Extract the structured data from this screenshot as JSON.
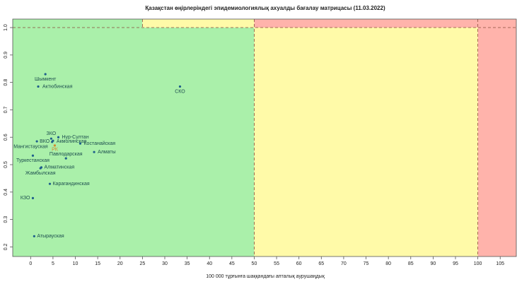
{
  "chart_data": {
    "type": "scatter",
    "title": "Қазақстан өңірлеріндегі эпидемиологиялық ахуалды бағалау матрицасы  (11.03.2022)",
    "x_label": "100 000 тұрғынға шаққандағы апталық аурушаңдық",
    "labels": [
      "Шымкент",
      "Актюбинская",
      "СКО",
      "Нур-Султан",
      "ЗКО",
      "Акмолинская",
      "ВКО",
      "Мангистауская",
      "Костанайская",
      "РК",
      "Алматы",
      "Павлодарская",
      "Туркестанская",
      "Алматинская",
      "Жамбылская",
      "Карагандинская",
      "КЗО",
      "Атырауская"
    ],
    "x": [
      3.3,
      1.7,
      33.4,
      6.2,
      4.6,
      5.0,
      1.4,
      4.8,
      11.1,
      5.4,
      14.2,
      7.9,
      0.5,
      2.4,
      2.2,
      4.3,
      0.5,
      0.8
    ],
    "values": [
      0.83,
      0.785,
      0.785,
      0.6,
      0.595,
      0.587,
      0.585,
      0.583,
      0.577,
      0.57,
      0.546,
      0.523,
      0.533,
      0.49,
      0.487,
      0.43,
      0.378,
      0.239
    ],
    "colors": [
      "#1f5f8b",
      "#1f5f8b",
      "#1f5f8b",
      "#1f5f8b",
      "#1f5f8b",
      "#1f5f8b",
      "#1f5f8b",
      "#1f5f8b",
      "#1f5f8b",
      "#d4892c",
      "#1f5f8b",
      "#1f5f8b",
      "#1f5f8b",
      "#1f5f8b",
      "#1f5f8b",
      "#1f5f8b",
      "#1f5f8b",
      "#1f5f8b"
    ],
    "zones": [
      {
        "x": [
          null,
          50
        ],
        "y": [
          null,
          1
        ],
        "color": "#aaf0aa"
      },
      {
        "x": [
          null,
          25
        ],
        "y": [
          1,
          null
        ],
        "color": "#aaf0aa"
      },
      {
        "x": [
          25,
          50
        ],
        "y": [
          1,
          null
        ],
        "color": "#fffaa8"
      },
      {
        "x": [
          50,
          100
        ],
        "y": [
          null,
          1
        ],
        "color": "#fffaa8"
      },
      {
        "x": [
          50,
          null
        ],
        "y": [
          1,
          null
        ],
        "color": "#ffb3ab"
      },
      {
        "x": [
          100,
          null
        ],
        "y": [
          null,
          1
        ],
        "color": "#ffb3ab"
      }
    ],
    "ref_lines": [
      {
        "y": 1
      },
      {
        "x": 50
      },
      {
        "x": 100
      },
      {
        "x": 25,
        "from": 1
      }
    ],
    "xlim": [
      -4,
      108.6
    ],
    "ylim": [
      0.165,
      1.031
    ],
    "xticks": [
      0,
      5,
      10,
      15,
      20,
      25,
      30,
      35,
      40,
      45,
      50,
      55,
      60,
      65,
      70,
      75,
      80,
      85,
      90,
      95,
      100,
      105
    ],
    "yticks": [
      0.2,
      0.3,
      0.4,
      0.5,
      0.6,
      0.7,
      0.8,
      0.9,
      {
        "value": 1,
        "label": "1.0"
      }
    ]
  }
}
